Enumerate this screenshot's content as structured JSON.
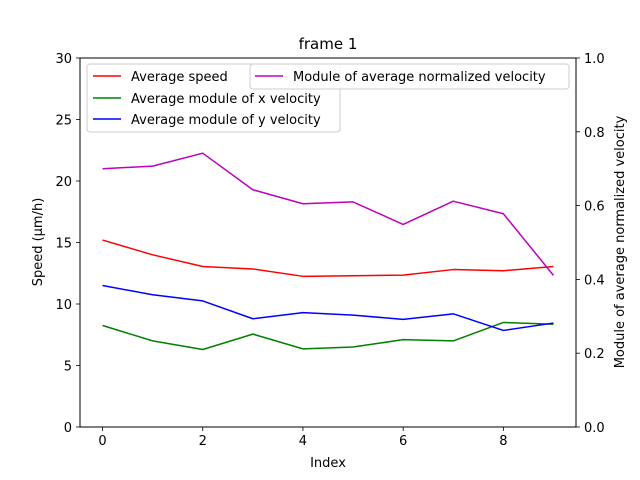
{
  "chart_data": {
    "type": "line",
    "title": "frame 1",
    "xlabel": "Index",
    "ylabel": "Speed (μm/h)",
    "ylabel_right": "Module of average normalized velocity",
    "x": [
      0,
      1,
      2,
      3,
      4,
      5,
      6,
      7,
      8,
      9
    ],
    "xlim": [
      -0.45,
      9.45
    ],
    "ylim": [
      0,
      30
    ],
    "ylim_right": [
      0,
      1
    ],
    "xticks": [
      "0",
      "2",
      "4",
      "6",
      "8"
    ],
    "yticks": [
      "0",
      "5",
      "10",
      "15",
      "20",
      "25",
      "30"
    ],
    "yticks_right": [
      "0.0",
      "0.2",
      "0.4",
      "0.6",
      "0.8",
      "1.0"
    ],
    "grid": false,
    "legend_left": "upper-left",
    "legend_right": "upper-right",
    "series": [
      {
        "name": "Average speed",
        "axis": "left",
        "color": "#ff0000",
        "values": [
          15.2,
          14.0,
          13.05,
          12.85,
          12.25,
          12.3,
          12.35,
          12.8,
          12.7,
          13.05
        ]
      },
      {
        "name": "Average module of x velocity",
        "axis": "left",
        "color": "#008000",
        "values": [
          8.25,
          7.0,
          6.3,
          7.55,
          6.35,
          6.5,
          7.1,
          7.0,
          8.5,
          8.35
        ]
      },
      {
        "name": "Average module of y velocity",
        "axis": "left",
        "color": "#0000ff",
        "values": [
          11.5,
          10.75,
          10.25,
          8.8,
          9.3,
          9.1,
          8.75,
          9.2,
          7.85,
          8.45
        ]
      },
      {
        "name": "Module of average normalized velocity",
        "axis": "right",
        "color": "#bf00bf",
        "values": [
          0.7,
          0.707,
          0.742,
          0.643,
          0.605,
          0.61,
          0.549,
          0.612,
          0.578,
          0.411
        ]
      }
    ]
  }
}
